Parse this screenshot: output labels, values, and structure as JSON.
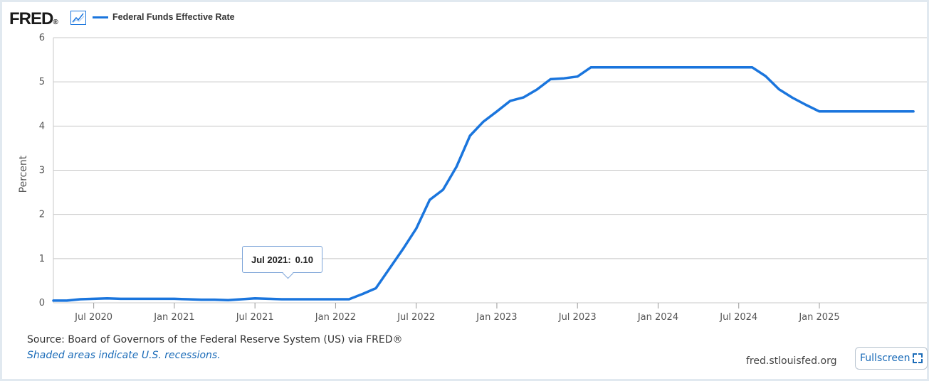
{
  "header": {
    "logo_text": "FRED",
    "logo_mark": "®",
    "graph_icon": "line-graph-icon"
  },
  "footer": {
    "source": "Source: Board of Governors of the Federal Reserve System (US) via FRED®",
    "note": "Shaded areas indicate U.S. recessions.",
    "site": "fred.stlouisfed.org",
    "fullscreen_label": "Fullscreen",
    "fullscreen_icon": "fullscreen-icon"
  },
  "tooltip": {
    "date": "Jul 2021:",
    "value": "0.10"
  },
  "colors": {
    "series": "#1a75dd",
    "grid": "#c8c8c8",
    "link": "#1a6bb8"
  },
  "chart_data": {
    "type": "line",
    "title": "",
    "xlabel": "",
    "ylabel": "Percent",
    "ylim": [
      0,
      6
    ],
    "yticks": [
      0,
      1,
      2,
      3,
      4,
      5,
      6
    ],
    "xlim": [
      "2020-04",
      "2025-09"
    ],
    "xticks": [
      {
        "label": "Jul 2020",
        "date": "2020-07"
      },
      {
        "label": "Jan 2021",
        "date": "2021-01"
      },
      {
        "label": "Jul 2021",
        "date": "2021-07"
      },
      {
        "label": "Jan 2022",
        "date": "2022-01"
      },
      {
        "label": "Jul 2022",
        "date": "2022-07"
      },
      {
        "label": "Jan 2023",
        "date": "2023-01"
      },
      {
        "label": "Jul 2023",
        "date": "2023-07"
      },
      {
        "label": "Jan 2024",
        "date": "2024-01"
      },
      {
        "label": "Jul 2024",
        "date": "2024-07"
      },
      {
        "label": "Jan 2025",
        "date": "2025-01"
      }
    ],
    "grid": true,
    "legend": "top-left",
    "series": [
      {
        "name": "Federal Funds Effective Rate",
        "x": [
          "2020-04",
          "2020-05",
          "2020-06",
          "2020-07",
          "2020-08",
          "2020-09",
          "2020-10",
          "2020-11",
          "2020-12",
          "2021-01",
          "2021-02",
          "2021-03",
          "2021-04",
          "2021-05",
          "2021-06",
          "2021-07",
          "2021-08",
          "2021-09",
          "2021-10",
          "2021-11",
          "2021-12",
          "2022-01",
          "2022-02",
          "2022-03",
          "2022-04",
          "2022-05",
          "2022-06",
          "2022-07",
          "2022-08",
          "2022-09",
          "2022-10",
          "2022-11",
          "2022-12",
          "2023-01",
          "2023-02",
          "2023-03",
          "2023-04",
          "2023-05",
          "2023-06",
          "2023-07",
          "2023-08",
          "2023-09",
          "2023-10",
          "2023-11",
          "2023-12",
          "2024-01",
          "2024-02",
          "2024-03",
          "2024-04",
          "2024-05",
          "2024-06",
          "2024-07",
          "2024-08",
          "2024-09",
          "2024-10",
          "2024-11",
          "2024-12",
          "2025-01",
          "2025-02",
          "2025-03",
          "2025-04",
          "2025-05",
          "2025-06",
          "2025-07",
          "2025-08"
        ],
        "y": [
          0.05,
          0.05,
          0.08,
          0.09,
          0.1,
          0.09,
          0.09,
          0.09,
          0.09,
          0.09,
          0.08,
          0.07,
          0.07,
          0.06,
          0.08,
          0.1,
          0.09,
          0.08,
          0.08,
          0.08,
          0.08,
          0.08,
          0.08,
          0.2,
          0.33,
          0.77,
          1.21,
          1.68,
          2.33,
          2.56,
          3.08,
          3.78,
          4.1,
          4.33,
          4.57,
          4.65,
          4.83,
          5.06,
          5.08,
          5.12,
          5.33,
          5.33,
          5.33,
          5.33,
          5.33,
          5.33,
          5.33,
          5.33,
          5.33,
          5.33,
          5.33,
          5.33,
          5.33,
          5.13,
          4.83,
          4.64,
          4.48,
          4.33,
          4.33,
          4.33,
          4.33,
          4.33,
          4.33,
          4.33,
          4.33
        ]
      }
    ]
  }
}
